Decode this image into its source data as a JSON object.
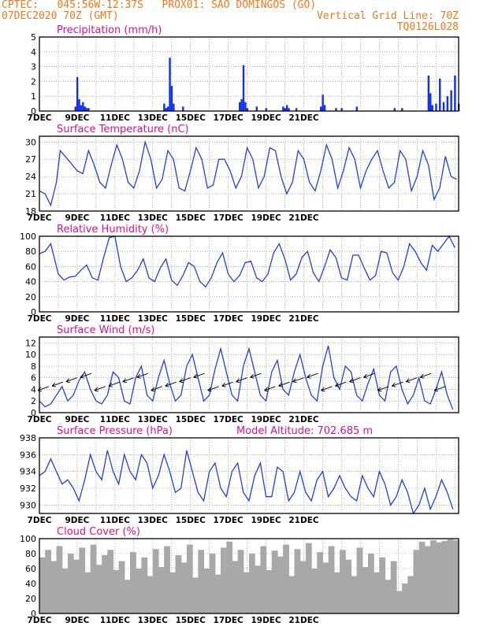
{
  "header": {
    "line1": "CPTEC:   045:56W-12:37S   PROX01: SAO DOMINGOS (GO)",
    "date": "07DEC2020 70Z (GMT)",
    "grid_note": "Vertical Grid Line: 70Z",
    "run_id": "TQ0126L028"
  },
  "colors": {
    "header": "#f07820",
    "title": "#e0108c",
    "line": "#2040e0",
    "bar": "#1030f0",
    "cloud": "#a8a8a8"
  },
  "chart_data": [
    {
      "id": "precip",
      "type": "bar",
      "title": "Precipitation (mm/h)",
      "ylim": [
        0,
        5
      ],
      "yticks": [
        0,
        1,
        2,
        3,
        4,
        5
      ],
      "xticks": [
        "7DEC",
        "9DEC",
        "11DEC",
        "13DEC",
        "15DEC",
        "17DEC",
        "19DEC",
        "21DEC"
      ],
      "x": [
        1.9,
        2.0,
        2.1,
        2.2,
        2.3,
        2.4,
        2.5,
        2.6,
        6.6,
        6.7,
        6.8,
        6.9,
        7.0,
        7.1,
        7.6,
        10.6,
        10.7,
        10.8,
        10.9,
        11.0,
        11.5,
        12.0,
        12.9,
        13.0,
        13.1,
        13.2,
        13.6,
        14.9,
        15.0,
        15.1,
        15.7,
        16.0,
        16.8,
        18.8,
        19.2,
        20.6,
        20.7,
        20.8,
        21.0,
        21.2,
        21.4,
        21.6,
        21.8,
        22.0,
        22.2
      ],
      "values": [
        0.3,
        2.3,
        0.8,
        0.4,
        0.6,
        0.3,
        0.2,
        0.2,
        0.5,
        0.2,
        0.3,
        3.6,
        1.7,
        0.5,
        0.3,
        0.6,
        0.8,
        3.1,
        0.6,
        0.2,
        0.3,
        0.2,
        0.3,
        0.2,
        0.4,
        0.2,
        0.2,
        0.3,
        1.1,
        0.4,
        0.2,
        0.2,
        0.3,
        0.2,
        0.2,
        2.4,
        1.2,
        0.4,
        0.5,
        2.2,
        0.6,
        1.0,
        1.4,
        2.4,
        0.5
      ]
    },
    {
      "id": "temp",
      "type": "line",
      "title": "Surface Temperature (nC)",
      "ylim": [
        18,
        31
      ],
      "yticks": [
        18,
        21,
        24,
        27,
        30
      ],
      "xticks": [
        "7DEC",
        "9DEC",
        "11DEC",
        "13DEC",
        "15DEC",
        "17DEC",
        "19DEC",
        "21DEC"
      ],
      "x": [
        0.0,
        0.3,
        0.6,
        0.9,
        1.1,
        1.5,
        2.0,
        2.3,
        2.6,
        2.9,
        3.2,
        3.5,
        3.8,
        4.1,
        4.4,
        4.7,
        5.0,
        5.3,
        5.6,
        5.9,
        6.2,
        6.5,
        6.8,
        7.1,
        7.4,
        7.7,
        8.0,
        8.3,
        8.6,
        8.9,
        9.2,
        9.5,
        9.8,
        10.1,
        10.4,
        10.7,
        11.0,
        11.3,
        11.6,
        11.9,
        12.2,
        12.5,
        12.8,
        13.1,
        13.4,
        13.7,
        14.0,
        14.3,
        14.6,
        14.9,
        15.2,
        15.5,
        15.8,
        16.1,
        16.4,
        16.7,
        17.0,
        17.3,
        17.6,
        17.9,
        18.2,
        18.5,
        18.8,
        19.1,
        19.4,
        19.7,
        20.0,
        20.3,
        20.6,
        20.9,
        21.2,
        21.5,
        21.8,
        22.1
      ],
      "values": [
        21.5,
        21,
        19,
        23,
        28.5,
        27,
        25,
        24.5,
        28.5,
        26,
        23,
        22,
        26,
        29.5,
        27,
        23,
        22,
        25,
        30,
        27,
        22,
        23.5,
        28.5,
        27,
        22,
        21.5,
        25,
        29,
        27,
        22,
        22.5,
        27,
        27,
        25,
        22,
        24,
        29,
        27,
        22,
        24,
        29,
        28.5,
        24,
        21,
        23,
        28.5,
        27,
        23,
        21.5,
        25,
        29.5,
        27,
        22,
        25,
        29,
        27,
        22,
        25,
        27,
        28.5,
        25,
        22,
        23,
        28.5,
        27,
        21.5,
        24,
        28.5,
        26,
        20,
        22,
        27.5,
        24,
        23.5
      ]
    },
    {
      "id": "rh",
      "type": "line",
      "title": "Relative Humidity (%)",
      "ylim": [
        0,
        100
      ],
      "yticks": [
        0,
        20,
        40,
        60,
        80,
        100
      ],
      "xticks": [
        "7DEC",
        "9DEC",
        "11DEC",
        "13DEC",
        "15DEC",
        "17DEC",
        "19DEC",
        "21DEC"
      ],
      "x": [
        0.0,
        0.3,
        0.6,
        1.0,
        1.3,
        1.6,
        1.9,
        2.2,
        2.5,
        2.8,
        3.1,
        3.4,
        3.7,
        4.0,
        4.3,
        4.6,
        4.9,
        5.2,
        5.5,
        5.8,
        6.1,
        6.4,
        6.7,
        7.0,
        7.3,
        7.6,
        7.9,
        8.2,
        8.5,
        8.8,
        9.1,
        9.4,
        9.7,
        10.0,
        10.3,
        10.6,
        10.9,
        11.2,
        11.5,
        11.8,
        12.1,
        12.4,
        12.7,
        13.0,
        13.3,
        13.6,
        13.9,
        14.2,
        14.5,
        14.8,
        15.1,
        15.4,
        15.7,
        16.0,
        16.3,
        16.6,
        16.9,
        17.2,
        17.5,
        17.8,
        18.1,
        18.4,
        18.7,
        19.0,
        19.3,
        19.6,
        19.9,
        20.2,
        20.5,
        20.8,
        21.1,
        21.4,
        21.7,
        22.0
      ],
      "values": [
        77,
        80,
        90,
        50,
        42,
        46,
        47,
        55,
        62,
        45,
        42,
        72,
        98,
        100,
        60,
        40,
        45,
        55,
        70,
        45,
        40,
        58,
        70,
        42,
        35,
        48,
        65,
        60,
        40,
        33,
        45,
        65,
        78,
        50,
        40,
        48,
        65,
        67,
        45,
        40,
        50,
        78,
        90,
        70,
        42,
        50,
        72,
        80,
        52,
        40,
        60,
        82,
        72,
        45,
        42,
        75,
        75,
        58,
        42,
        48,
        80,
        78,
        52,
        42,
        60,
        90,
        80,
        65,
        55,
        88,
        80,
        90,
        100,
        85
      ]
    },
    {
      "id": "wind",
      "type": "line",
      "title": "Surface Wind (m/s)",
      "ylim": [
        0,
        13
      ],
      "yticks": [
        0,
        2,
        4,
        6,
        8,
        10,
        12
      ],
      "xticks": [
        "7DEC",
        "9DEC",
        "11DEC",
        "13DEC",
        "15DEC",
        "17DEC",
        "19DEC",
        "21DEC"
      ],
      "x": [
        0.0,
        0.3,
        0.6,
        0.9,
        1.2,
        1.5,
        1.8,
        2.1,
        2.4,
        2.7,
        3.0,
        3.3,
        3.6,
        3.9,
        4.2,
        4.5,
        4.8,
        5.1,
        5.4,
        5.7,
        6.0,
        6.3,
        6.6,
        6.9,
        7.2,
        7.5,
        7.8,
        8.1,
        8.4,
        8.7,
        9.0,
        9.3,
        9.6,
        9.9,
        10.2,
        10.5,
        10.8,
        11.1,
        11.4,
        11.7,
        12.0,
        12.3,
        12.6,
        12.9,
        13.2,
        13.5,
        13.8,
        14.1,
        14.4,
        14.7,
        15.0,
        15.3,
        15.6,
        15.9,
        16.2,
        16.5,
        16.8,
        17.1,
        17.4,
        17.7,
        18.0,
        18.3,
        18.6,
        18.9,
        19.2,
        19.5,
        19.8,
        20.1,
        20.4,
        20.7,
        21.0,
        21.3,
        21.6,
        21.9
      ],
      "values": [
        2,
        1,
        1.5,
        3,
        4.5,
        2,
        3,
        5.5,
        7,
        4,
        2,
        1.5,
        3,
        7,
        6,
        2,
        1.5,
        6,
        8,
        3,
        2,
        6,
        9,
        5,
        2,
        3,
        8,
        10,
        6,
        2,
        3,
        7.5,
        11,
        7,
        3,
        2,
        8,
        11,
        7,
        3,
        2,
        7,
        9,
        4,
        3,
        7,
        10,
        6,
        3,
        2,
        8,
        11.5,
        6,
        4,
        8,
        7,
        3,
        2,
        5,
        7.5,
        3,
        2,
        7,
        8,
        4,
        1.5,
        3,
        6,
        2,
        1.5,
        4,
        7,
        3,
        0.5
      ]
    },
    {
      "id": "pressure",
      "type": "line",
      "title": "Surface Pressure (hPa)",
      "annotation": "Model Altitude: 702.685 m",
      "ylim": [
        929,
        938
      ],
      "yticks": [
        930,
        932,
        934,
        936,
        938
      ],
      "xticks": [
        "7DEC",
        "9DEC",
        "11DEC",
        "13DEC",
        "15DEC",
        "17DEC",
        "19DEC",
        "21DEC"
      ],
      "x": [
        0.0,
        0.3,
        0.6,
        0.9,
        1.2,
        1.5,
        1.8,
        2.1,
        2.4,
        2.7,
        3.0,
        3.3,
        3.6,
        3.9,
        4.2,
        4.5,
        4.8,
        5.1,
        5.4,
        5.7,
        6.0,
        6.3,
        6.6,
        6.9,
        7.2,
        7.5,
        7.8,
        8.1,
        8.4,
        8.7,
        9.0,
        9.3,
        9.6,
        9.9,
        10.2,
        10.5,
        10.8,
        11.1,
        11.4,
        11.7,
        12.0,
        12.3,
        12.6,
        12.9,
        13.2,
        13.5,
        13.8,
        14.1,
        14.4,
        14.7,
        15.0,
        15.3,
        15.6,
        15.9,
        16.2,
        16.5,
        16.8,
        17.1,
        17.4,
        17.7,
        18.0,
        18.3,
        18.6,
        18.9,
        19.2,
        19.5,
        19.8,
        20.1,
        20.4,
        20.7,
        21.0,
        21.3,
        21.6,
        21.9
      ],
      "values": [
        933.5,
        934,
        935.5,
        934,
        932.5,
        933,
        932,
        930.5,
        933,
        936,
        934,
        933,
        936.5,
        934,
        932.5,
        936,
        934,
        933,
        936,
        935,
        932,
        933.5,
        936,
        934,
        931.5,
        932,
        936.5,
        934,
        931.5,
        930.5,
        934,
        935,
        932,
        931,
        934,
        935,
        931.5,
        930.5,
        933.5,
        935,
        931,
        931,
        934.5,
        934,
        930.5,
        931.5,
        934,
        931.5,
        930.5,
        933,
        934,
        931,
        932,
        933.5,
        932,
        931,
        930.5,
        933.5,
        932,
        931,
        934,
        932.5,
        930,
        931,
        933,
        931.5,
        929,
        930,
        932,
        929.5,
        931,
        933,
        931.5,
        929.5
      ]
    },
    {
      "id": "cloud",
      "type": "bar",
      "title": "Cloud Cover (%)",
      "ylim": [
        0,
        100
      ],
      "yticks": [
        0,
        20,
        40,
        60,
        80,
        100
      ],
      "xticks": [
        "7DEC",
        "9DEC",
        "11DEC",
        "13DEC",
        "15DEC",
        "17DEC",
        "19DEC",
        "21DEC"
      ],
      "x": [
        0.0,
        0.3,
        0.6,
        0.9,
        1.2,
        1.5,
        1.8,
        2.1,
        2.4,
        2.7,
        3.0,
        3.3,
        3.6,
        3.9,
        4.2,
        4.5,
        4.8,
        5.1,
        5.4,
        5.7,
        6.0,
        6.3,
        6.6,
        6.9,
        7.2,
        7.5,
        7.8,
        8.1,
        8.4,
        8.7,
        9.0,
        9.3,
        9.6,
        9.9,
        10.2,
        10.5,
        10.8,
        11.1,
        11.4,
        11.7,
        12.0,
        12.3,
        12.6,
        12.9,
        13.2,
        13.5,
        13.8,
        14.1,
        14.4,
        14.7,
        15.0,
        15.3,
        15.6,
        15.9,
        16.2,
        16.5,
        16.8,
        17.1,
        17.4,
        17.7,
        18.0,
        18.3,
        18.6,
        18.9,
        19.2,
        19.5,
        19.8,
        20.1,
        20.4,
        20.7,
        21.0,
        21.3,
        21.6,
        21.9
      ],
      "values": [
        75,
        85,
        70,
        90,
        60,
        80,
        72,
        88,
        55,
        92,
        65,
        78,
        85,
        58,
        70,
        45,
        82,
        60,
        75,
        50,
        86,
        62,
        90,
        55,
        78,
        68,
        92,
        48,
        85,
        60,
        80,
        52,
        88,
        96,
        70,
        85,
        55,
        80,
        64,
        90,
        58,
        84,
        76,
        92,
        50,
        86,
        70,
        94,
        60,
        82,
        68,
        90,
        55,
        85,
        72,
        50,
        88,
        62,
        80,
        55,
        75,
        45,
        70,
        30,
        40,
        50,
        85,
        96,
        90,
        98,
        95,
        97,
        99,
        98
      ]
    }
  ]
}
